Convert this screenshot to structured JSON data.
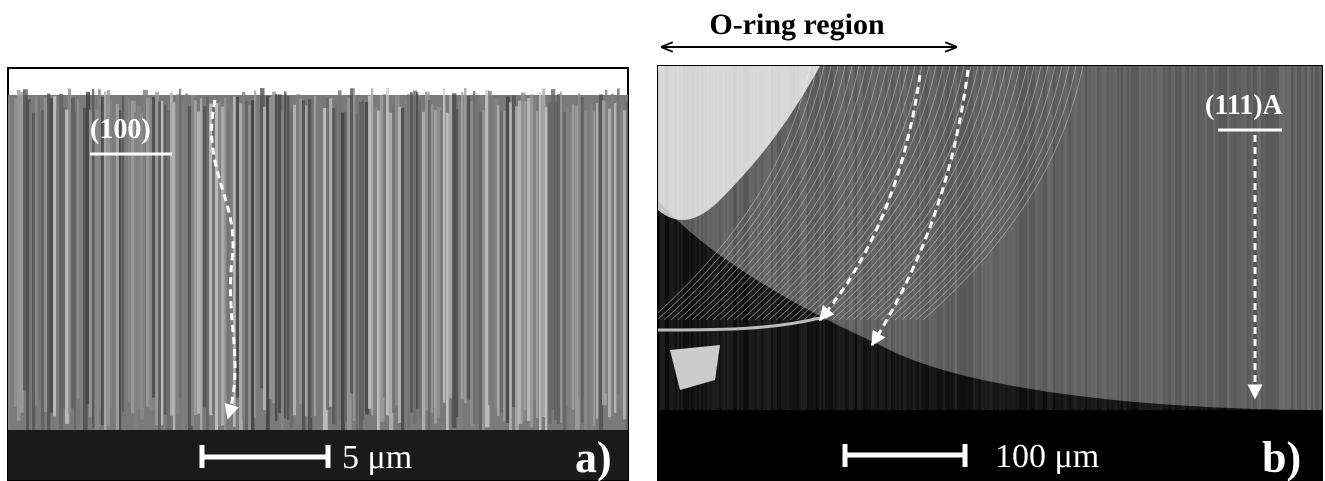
{
  "header": {
    "title": "O-ring region"
  },
  "panels": [
    {
      "orientation": "(100)",
      "scale_bar": "5 μm",
      "label": "a)"
    },
    {
      "orientation": "(111)A",
      "scale_bar": "100 μm",
      "label": "b)"
    }
  ]
}
